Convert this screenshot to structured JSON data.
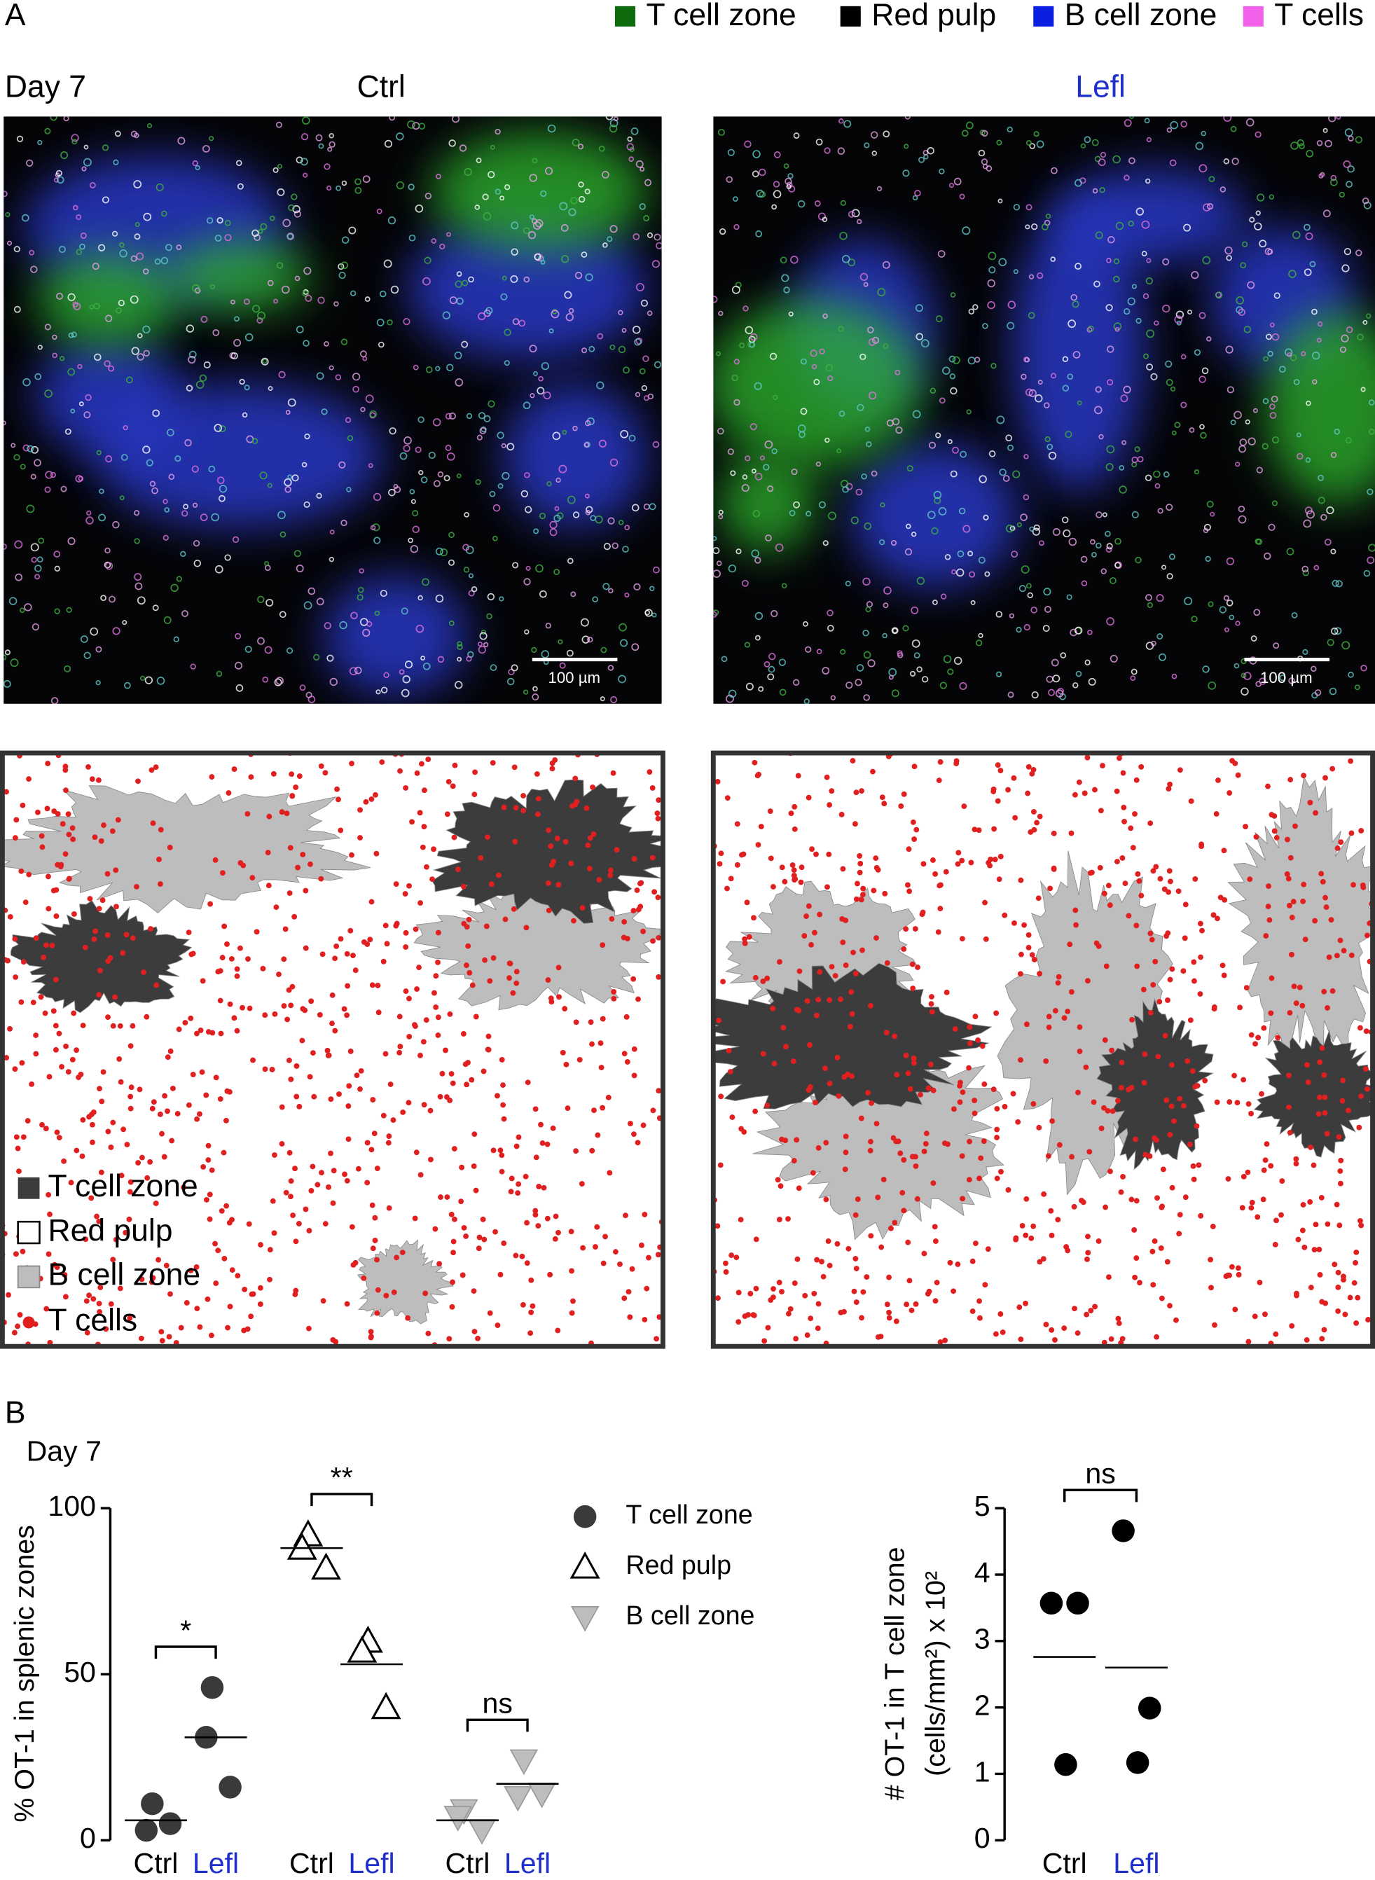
{
  "panel_a": {
    "label": "A",
    "legend": [
      "T cell zone",
      "Red pulp",
      "B cell zone",
      "T cells"
    ],
    "legend_colors": [
      "#0d6b0d",
      "#000000",
      "#0a1fe0",
      "#f060e8"
    ],
    "day": "Day 7",
    "conditions": [
      "Ctrl",
      "Lefl"
    ],
    "condition_colors": [
      "#000000",
      "#1f2fcc"
    ],
    "scale_bar": "100 µm",
    "map_legend": [
      "T cell zone",
      "Red pulp",
      "B cell zone",
      "T cells"
    ]
  },
  "panel_b": {
    "label": "B",
    "day": "Day 7"
  },
  "chart_data": [
    {
      "type": "dot",
      "ylabel": "% OT-1 in splenic zones",
      "categories": [
        "Ctrl",
        "Lefl",
        "Ctrl",
        "Lefl",
        "Ctrl",
        "Lefl"
      ],
      "category_colors": [
        "#000000",
        "#1f2fcc",
        "#000000",
        "#1f2fcc",
        "#000000",
        "#1f2fcc"
      ],
      "ylim": [
        0,
        100
      ],
      "yticks": [
        0,
        50,
        100
      ],
      "series": [
        {
          "name": "T cell zone",
          "marker": "circle",
          "color": "#3a3a3a",
          "values": [
            [
              11,
              3,
              5
            ],
            [
              46,
              31,
              16
            ],
            null,
            null,
            null,
            null
          ],
          "means": [
            6,
            31,
            null,
            null,
            null,
            null
          ]
        },
        {
          "name": "Red pulp",
          "marker": "triangle",
          "color": "none",
          "values": [
            null,
            null,
            [
              92,
              88,
              82
            ],
            [
              60,
              57,
              40
            ],
            null,
            null
          ],
          "means": [
            null,
            null,
            88,
            53,
            null,
            null
          ]
        },
        {
          "name": "B cell zone",
          "marker": "triangle-down",
          "color": "#bdbdbd",
          "values": [
            null,
            null,
            null,
            null,
            [
              9,
              7,
              3
            ],
            [
              24,
              13,
              14
            ]
          ],
          "means": [
            null,
            null,
            null,
            null,
            6,
            17
          ]
        }
      ],
      "significance": [
        "*",
        "**",
        "ns"
      ]
    },
    {
      "type": "dot",
      "ylabel": [
        "# OT-1 in T cell zone",
        "(cells/mm²) x 10²"
      ],
      "categories": [
        "Ctrl",
        "Lefl"
      ],
      "category_colors": [
        "#000000",
        "#1f2fcc"
      ],
      "ylim": [
        0,
        5
      ],
      "yticks": [
        0,
        1,
        2,
        3,
        4,
        5
      ],
      "series": [
        {
          "marker": "circle",
          "color": "#000000",
          "values": [
            [
              3.57,
              3.57,
              1.14
            ],
            [
              4.66,
              1.99,
              1.17
            ]
          ],
          "means": [
            2.76,
            2.6
          ]
        }
      ],
      "significance": [
        "ns"
      ]
    }
  ]
}
